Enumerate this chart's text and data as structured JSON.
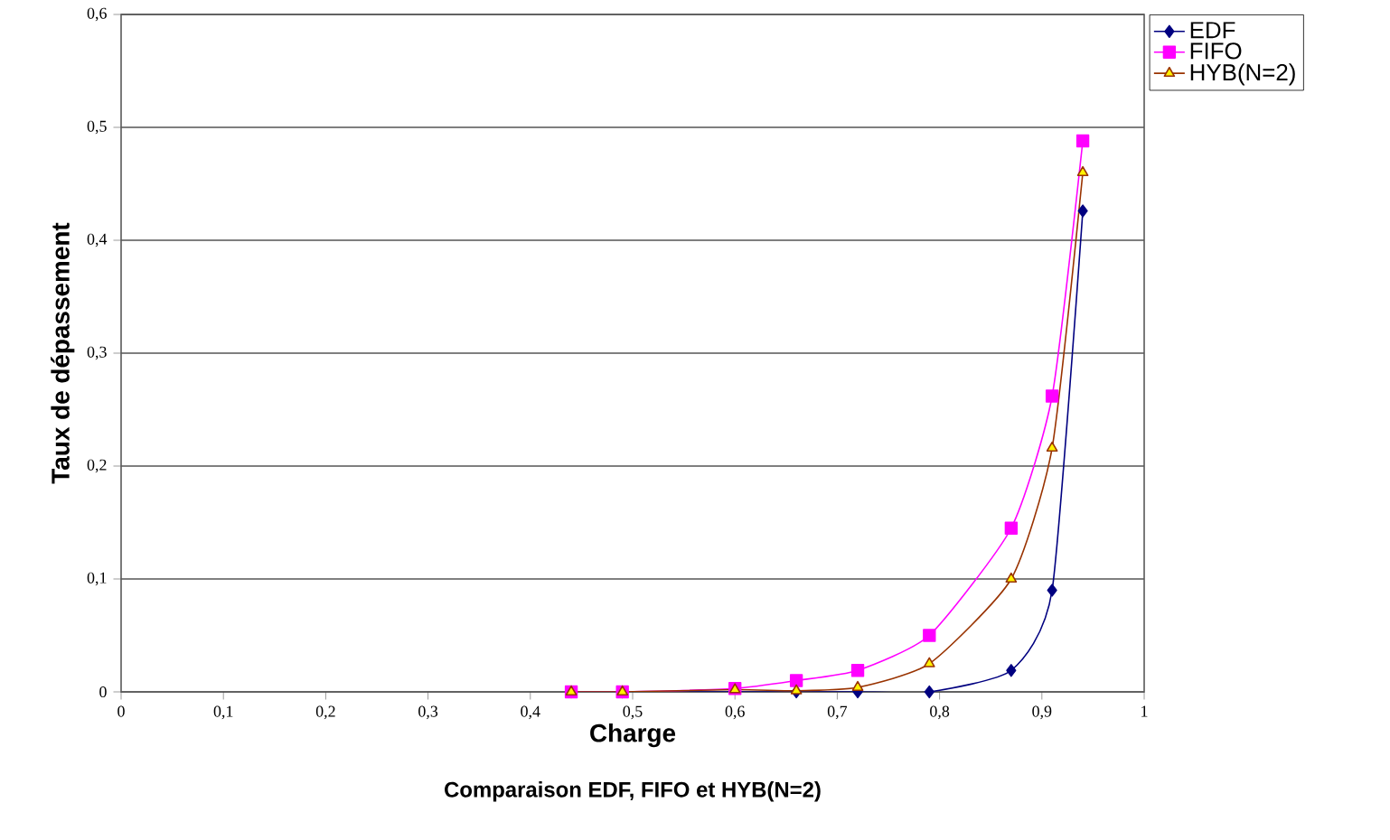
{
  "chart_data": {
    "type": "line",
    "title": "Comparaison EDF, FIFO et HYB(N=2)",
    "xlabel": "Charge",
    "ylabel": "Taux de dépassement",
    "x": [
      0.44,
      0.49,
      0.6,
      0.66,
      0.72,
      0.79,
      0.87,
      0.91,
      0.94
    ],
    "series": [
      {
        "name": "EDF",
        "color": "#000080",
        "marker": "diamond",
        "values": [
          0,
          0,
          null,
          0,
          0,
          0,
          0.019,
          0.09,
          0.426
        ]
      },
      {
        "name": "FIFO",
        "color": "#ff00ff",
        "marker": "square",
        "values": [
          0,
          0,
          0.003,
          0.01,
          0.019,
          0.05,
          0.145,
          0.262,
          0.488
        ]
      },
      {
        "name": "HYB(N=2)",
        "color": "#993300",
        "marker": "triangle",
        "values": [
          0,
          0,
          0.002,
          0.001,
          0.004,
          0.025,
          0.1,
          0.216,
          0.46
        ]
      }
    ],
    "xlim": [
      0,
      1
    ],
    "xticks": [
      {
        "value": 0,
        "label": "0"
      },
      {
        "value": 0.1,
        "label": "0,1"
      },
      {
        "value": 0.2,
        "label": "0,2"
      },
      {
        "value": 0.3,
        "label": "0,3"
      },
      {
        "value": 0.4,
        "label": "0,4"
      },
      {
        "value": 0.5,
        "label": "0,5"
      },
      {
        "value": 0.6,
        "label": "0,6"
      },
      {
        "value": 0.7,
        "label": "0,7"
      },
      {
        "value": 0.8,
        "label": "0,8"
      },
      {
        "value": 0.9,
        "label": "0,9"
      },
      {
        "value": 1,
        "label": "1"
      }
    ],
    "ylim": [
      0,
      0.6
    ],
    "yticks": [
      {
        "value": 0,
        "label": "0"
      },
      {
        "value": 0.1,
        "label": "0,1"
      },
      {
        "value": 0.2,
        "label": "0,2"
      },
      {
        "value": 0.3,
        "label": "0,3"
      },
      {
        "value": 0.4,
        "label": "0,4"
      },
      {
        "value": 0.5,
        "label": "0,5"
      },
      {
        "value": 0.6,
        "label": "0,6"
      }
    ],
    "grid": "y",
    "legend": "top right"
  }
}
